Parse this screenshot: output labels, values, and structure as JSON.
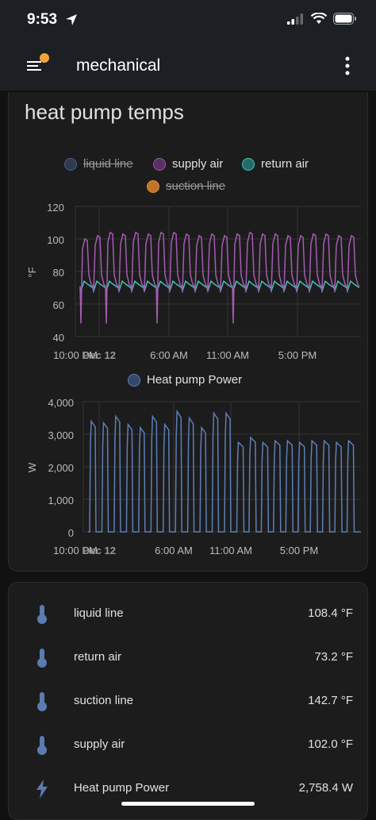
{
  "status_bar": {
    "time": "9:53"
  },
  "app_bar": {
    "title": "mechanical"
  },
  "card": {
    "title": "heat pump temps"
  },
  "temp_chart": {
    "legend": [
      {
        "label": "liquid line",
        "color": "#4a5f86",
        "hidden": true
      },
      {
        "label": "supply air",
        "color": "#8f4d9c",
        "hidden": false
      },
      {
        "label": "return air",
        "color": "#39a9a2",
        "hidden": false
      },
      {
        "label": "suction line",
        "color": "#e48a2c",
        "hidden": true
      }
    ],
    "unit": "°F",
    "y_ticks": [
      "120",
      "100",
      "80",
      "60",
      "40"
    ],
    "x_ticks": [
      "10:00 PM",
      "Dec 12",
      "6:00 AM",
      "11:00 AM",
      "5:00 PM"
    ]
  },
  "power_chart": {
    "legend": [
      {
        "label": "Heat pump Power",
        "color": "#4a6fa5"
      }
    ],
    "unit": "W",
    "y_ticks": [
      "4,000",
      "3,000",
      "2,000",
      "1,000",
      "0"
    ],
    "x_ticks": [
      "10:00 PM",
      "Dec 12",
      "6:00 AM",
      "11:00 AM",
      "5:00 PM"
    ]
  },
  "chart_data": [
    {
      "type": "line",
      "ylabel": "°F",
      "ylim": [
        40,
        120
      ],
      "x_ticks": [
        "10:00 PM",
        "Dec 12",
        "6:00 AM",
        "11:00 AM",
        "5:00 PM"
      ],
      "series": [
        {
          "name": "supply air",
          "cycle_peaks": [
            100,
            102,
            104,
            103,
            104,
            103,
            104,
            104,
            103,
            102,
            103,
            102,
            103,
            104,
            103,
            103,
            102,
            102,
            103,
            103,
            102,
            102
          ]
        },
        {
          "name": "return air",
          "baseline": 71,
          "range": [
            69,
            74
          ]
        }
      ]
    },
    {
      "type": "line",
      "ylabel": "W",
      "ylim": [
        0,
        4000
      ],
      "x_ticks": [
        "10:00 PM",
        "Dec 12",
        "6:00 AM",
        "11:00 AM",
        "5:00 PM"
      ],
      "series": [
        {
          "name": "Heat pump Power",
          "cycle_peaks": [
            3400,
            3350,
            3550,
            3300,
            3200,
            3550,
            3300,
            3700,
            3500,
            3200,
            3650,
            3650,
            2750,
            2900,
            2750,
            2800,
            2800,
            2750,
            2800,
            2800,
            2750,
            2800
          ]
        }
      ]
    }
  ],
  "sensors": [
    {
      "name": "liquid line",
      "value": "108.4 °F",
      "icon": "thermometer-icon"
    },
    {
      "name": "return air",
      "value": "73.2 °F",
      "icon": "thermometer-icon"
    },
    {
      "name": "suction line",
      "value": "142.7 °F",
      "icon": "thermometer-icon"
    },
    {
      "name": "supply air",
      "value": "102.0 °F",
      "icon": "thermometer-icon"
    },
    {
      "name": "Heat pump Power",
      "value": "2,758.4 W",
      "icon": "flash-icon"
    }
  ]
}
